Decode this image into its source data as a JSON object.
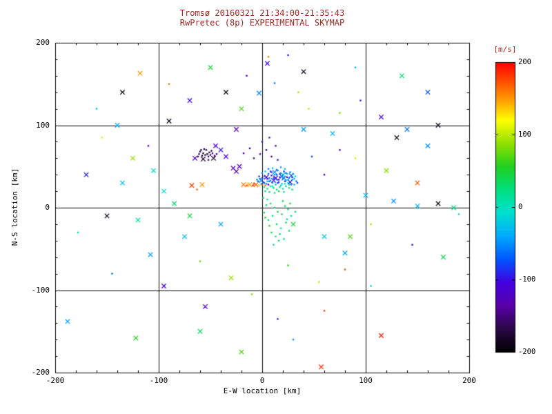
{
  "chart_data": {
    "type": "scatter",
    "title_line1": "Tromsø 20160321 21:34:00-21:35:43",
    "title_line2": "RwPretec (8p) EXPERIMENTAL SKYMAP",
    "xlabel": "E-W location [km]",
    "ylabel": "N-S location [km]",
    "xlim": [
      -200,
      200
    ],
    "ylim": [
      -200,
      200
    ],
    "grid": true,
    "grid_values": [
      -100,
      0,
      100
    ],
    "major_ticks": [
      -200,
      -100,
      0,
      100,
      200
    ],
    "minor_tick_step": 20,
    "x_tick_labels": [
      "-200",
      "-100",
      "0",
      "100",
      "200"
    ],
    "y_tick_labels": [
      "200",
      "100",
      "0",
      "-100",
      "-200"
    ],
    "legend_position": "right-colorbar",
    "colorbar": {
      "label": "[m/s]",
      "min": -200,
      "max": 200,
      "tick_values": [
        200,
        100,
        0,
        -100,
        -200
      ],
      "tick_labels": [
        "200",
        "100",
        "0",
        "-100",
        "-200"
      ]
    },
    "colors": {
      "title": "#992a20",
      "colorbar_label": "#cc2222",
      "axis": "#000000",
      "background": "#ffffff"
    },
    "colormap": [
      {
        "t": 0.0,
        "color": "#000000"
      },
      {
        "t": 0.08,
        "color": "#2a0845"
      },
      {
        "t": 0.16,
        "color": "#5a00a8"
      },
      {
        "t": 0.24,
        "color": "#4400e0"
      },
      {
        "t": 0.32,
        "color": "#0055ff"
      },
      {
        "t": 0.4,
        "color": "#00aaff"
      },
      {
        "t": 0.48,
        "color": "#00e0d0"
      },
      {
        "t": 0.56,
        "color": "#00e080"
      },
      {
        "t": 0.64,
        "color": "#20d020"
      },
      {
        "t": 0.72,
        "color": "#90e000"
      },
      {
        "t": 0.8,
        "color": "#ffff00"
      },
      {
        "t": 0.88,
        "color": "#ff9000"
      },
      {
        "t": 1.0,
        "color": "#ff0000"
      }
    ],
    "marker_legend": {
      "0": "dot",
      "1": "cross"
    },
    "points": [
      [
        2,
        38,
        -60,
        0
      ],
      [
        5,
        35,
        -80,
        0
      ],
      [
        8,
        33,
        -40,
        0
      ],
      [
        11,
        36,
        -70,
        0
      ],
      [
        14,
        34,
        -30,
        0
      ],
      [
        17,
        37,
        -90,
        0
      ],
      [
        20,
        35,
        -50,
        0
      ],
      [
        23,
        33,
        -20,
        0
      ],
      [
        26,
        36,
        -60,
        0
      ],
      [
        29,
        34,
        -40,
        0
      ],
      [
        1,
        31,
        -100,
        0
      ],
      [
        4,
        29,
        -55,
        0
      ],
      [
        7,
        32,
        -65,
        0
      ],
      [
        10,
        30,
        -45,
        0
      ],
      [
        13,
        28,
        -35,
        0
      ],
      [
        16,
        31,
        -75,
        0
      ],
      [
        19,
        29,
        -25,
        0
      ],
      [
        22,
        32,
        -85,
        0
      ],
      [
        25,
        30,
        -15,
        0
      ],
      [
        28,
        28,
        -60,
        0
      ],
      [
        0,
        42,
        -50,
        0
      ],
      [
        3,
        44,
        -30,
        0
      ],
      [
        6,
        41,
        -70,
        0
      ],
      [
        9,
        43,
        -90,
        0
      ],
      [
        12,
        40,
        -40,
        0
      ],
      [
        15,
        45,
        -60,
        0
      ],
      [
        18,
        42,
        -20,
        0
      ],
      [
        21,
        44,
        -80,
        0
      ],
      [
        24,
        41,
        -35,
        0
      ],
      [
        27,
        43,
        -55,
        0
      ],
      [
        2,
        25,
        10,
        0
      ],
      [
        5,
        23,
        25,
        0
      ],
      [
        8,
        26,
        5,
        0
      ],
      [
        11,
        24,
        40,
        0
      ],
      [
        14,
        22,
        15,
        0
      ],
      [
        17,
        25,
        30,
        0
      ],
      [
        20,
        23,
        0,
        0
      ],
      [
        23,
        26,
        20,
        0
      ],
      [
        26,
        24,
        35,
        0
      ],
      [
        29,
        22,
        10,
        0
      ],
      [
        -2,
        35,
        -45,
        0
      ],
      [
        -4,
        32,
        -65,
        0
      ],
      [
        -1,
        29,
        -30,
        0
      ],
      [
        -3,
        38,
        -85,
        0
      ],
      [
        -5,
        34,
        -50,
        0
      ],
      [
        31,
        35,
        -40,
        0
      ],
      [
        33,
        32,
        -60,
        0
      ],
      [
        32,
        38,
        -25,
        0
      ],
      [
        34,
        30,
        -70,
        0
      ],
      [
        30,
        41,
        -45,
        0
      ],
      [
        6,
        47,
        -55,
        0
      ],
      [
        10,
        48,
        -35,
        0
      ],
      [
        14,
        46,
        -65,
        0
      ],
      [
        18,
        49,
        -45,
        0
      ],
      [
        22,
        47,
        -25,
        0
      ],
      [
        3,
        20,
        20,
        0
      ],
      [
        7,
        19,
        35,
        0
      ],
      [
        12,
        18,
        10,
        0
      ],
      [
        16,
        20,
        45,
        0
      ],
      [
        21,
        19,
        25,
        0
      ],
      [
        4,
        37,
        -110,
        1
      ],
      [
        9,
        39,
        -95,
        0
      ],
      [
        13,
        36,
        -120,
        1
      ],
      [
        16,
        34,
        -105,
        0
      ],
      [
        19,
        38,
        -90,
        1
      ],
      [
        24,
        37,
        -115,
        0
      ],
      [
        27,
        31,
        -95,
        1
      ],
      [
        6,
        28,
        -125,
        0
      ],
      [
        11,
        33,
        -100,
        1
      ],
      [
        15,
        30,
        -85,
        0
      ],
      [
        18,
        27,
        -20,
        0
      ],
      [
        21,
        36,
        -55,
        1
      ],
      [
        25,
        34,
        -45,
        0
      ],
      [
        28,
        39,
        -70,
        1
      ],
      [
        0,
        36,
        -95,
        0
      ],
      [
        -1,
        33,
        -60,
        1
      ],
      [
        8,
        44,
        -75,
        0
      ],
      [
        12,
        43,
        -50,
        1
      ],
      [
        17,
        41,
        -85,
        0
      ],
      [
        20,
        40,
        -30,
        1
      ],
      [
        5,
        32,
        -40,
        0
      ],
      [
        10,
        26,
        15,
        0
      ],
      [
        14,
        40,
        -65,
        0
      ],
      [
        22,
        29,
        -10,
        0
      ],
      [
        26,
        28,
        25,
        0
      ],
      [
        2,
        30,
        -75,
        0
      ],
      [
        7,
        36,
        -55,
        0
      ],
      [
        23,
        42,
        -60,
        0
      ],
      [
        29,
        37,
        -80,
        0
      ],
      [
        31,
        28,
        -35,
        0
      ],
      [
        -18,
        28,
        160,
        1
      ],
      [
        -15,
        27,
        180,
        0
      ],
      [
        -12,
        28,
        150,
        1
      ],
      [
        -9,
        27,
        190,
        0
      ],
      [
        -6,
        28,
        170,
        1
      ],
      [
        -3,
        27,
        140,
        0
      ],
      [
        0,
        28,
        185,
        0
      ],
      [
        3,
        27,
        155,
        0
      ],
      [
        -14,
        29,
        130,
        0
      ],
      [
        -8,
        29,
        175,
        0
      ],
      [
        -60,
        68,
        -170,
        0
      ],
      [
        -57,
        66,
        -180,
        0
      ],
      [
        -54,
        70,
        -160,
        0
      ],
      [
        -51,
        67,
        -175,
        0
      ],
      [
        -58,
        63,
        -185,
        0
      ],
      [
        -55,
        64,
        -165,
        0
      ],
      [
        -52,
        62,
        -155,
        0
      ],
      [
        -49,
        69,
        -170,
        0
      ],
      [
        -61,
        65,
        -150,
        0
      ],
      [
        -56,
        71,
        -180,
        0
      ],
      [
        -53,
        65,
        -190,
        0
      ],
      [
        -50,
        64,
        -160,
        0
      ],
      [
        -59,
        70,
        -175,
        0
      ],
      [
        -48,
        66,
        -145,
        0
      ],
      [
        -62,
        62,
        -165,
        0
      ],
      [
        -46,
        63,
        -155,
        0
      ],
      [
        -57,
        59,
        -170,
        1
      ],
      [
        -52,
        58,
        -150,
        0
      ],
      [
        -47,
        60,
        -180,
        1
      ],
      [
        -44,
        65,
        -140,
        0
      ],
      [
        -45,
        75,
        -110,
        1
      ],
      [
        -40,
        70,
        -95,
        1
      ],
      [
        -65,
        60,
        -120,
        1
      ],
      [
        -35,
        62,
        -105,
        1
      ],
      [
        -28,
        48,
        -130,
        1
      ],
      [
        -22,
        50,
        -120,
        1
      ],
      [
        -25,
        44,
        -140,
        1
      ],
      [
        5,
        10,
        20,
        0
      ],
      [
        8,
        5,
        35,
        0
      ],
      [
        12,
        0,
        10,
        0
      ],
      [
        15,
        -5,
        45,
        0
      ],
      [
        10,
        -10,
        25,
        0
      ],
      [
        6,
        -15,
        15,
        0
      ],
      [
        14,
        -20,
        30,
        0
      ],
      [
        18,
        -25,
        5,
        0
      ],
      [
        9,
        -30,
        40,
        0
      ],
      [
        13,
        -35,
        20,
        0
      ],
      [
        16,
        -40,
        35,
        0
      ],
      [
        11,
        -45,
        15,
        0
      ],
      [
        20,
        8,
        50,
        0
      ],
      [
        22,
        2,
        25,
        0
      ],
      [
        19,
        -8,
        40,
        0
      ],
      [
        24,
        -14,
        10,
        0
      ],
      [
        7,
        -22,
        55,
        0
      ],
      [
        17,
        -32,
        30,
        0
      ],
      [
        21,
        -38,
        20,
        0
      ],
      [
        4,
        3,
        30,
        0
      ],
      [
        2,
        -6,
        45,
        0
      ],
      [
        25,
        -2,
        15,
        0
      ],
      [
        23,
        -18,
        35,
        0
      ],
      [
        26,
        -28,
        25,
        0
      ],
      [
        28,
        -10,
        5,
        0
      ],
      [
        30,
        -20,
        45,
        1
      ],
      [
        27,
        5,
        60,
        0
      ],
      [
        32,
        -5,
        30,
        0
      ],
      [
        3,
        -12,
        50,
        0
      ],
      [
        1,
        12,
        25,
        0
      ],
      [
        -40,
        -20,
        -40,
        1
      ],
      [
        100,
        15,
        -30,
        1
      ],
      [
        127,
        8,
        -50,
        1
      ],
      [
        150,
        2,
        -35,
        1
      ],
      [
        -108,
        -57,
        -45,
        1
      ],
      [
        60,
        -35,
        -25,
        1
      ],
      [
        80,
        -55,
        -40,
        1
      ],
      [
        -75,
        -35,
        -30,
        1
      ],
      [
        40,
        95,
        -45,
        1
      ],
      [
        68,
        90,
        -35,
        1
      ],
      [
        140,
        95,
        -60,
        1
      ],
      [
        160,
        75,
        -50,
        1
      ],
      [
        -140,
        100,
        -40,
        1
      ],
      [
        115,
        -155,
        190,
        1
      ],
      [
        60,
        -125,
        180,
        0
      ],
      [
        150,
        30,
        170,
        1
      ],
      [
        -90,
        150,
        160,
        0
      ],
      [
        -68,
        27,
        180,
        1
      ],
      [
        -63,
        22,
        165,
        0
      ],
      [
        -58,
        28,
        150,
        1
      ],
      [
        57,
        -193,
        185,
        1
      ],
      [
        80,
        -75,
        175,
        0
      ],
      [
        -118,
        163,
        150,
        1
      ],
      [
        -135,
        140,
        -195,
        1
      ],
      [
        -90,
        105,
        -190,
        1
      ],
      [
        170,
        100,
        -185,
        1
      ],
      [
        130,
        85,
        -190,
        1
      ],
      [
        -35,
        140,
        -195,
        1
      ],
      [
        40,
        165,
        -190,
        1
      ],
      [
        -150,
        -10,
        -185,
        1
      ],
      [
        170,
        5,
        -190,
        1
      ],
      [
        -155,
        85,
        110,
        0
      ],
      [
        -125,
        60,
        90,
        1
      ],
      [
        45,
        120,
        100,
        0
      ],
      [
        75,
        115,
        80,
        0
      ],
      [
        -20,
        120,
        70,
        1
      ],
      [
        35,
        140,
        95,
        0
      ],
      [
        90,
        60,
        105,
        0
      ],
      [
        120,
        45,
        85,
        1
      ],
      [
        -60,
        -65,
        75,
        0
      ],
      [
        -30,
        -85,
        90,
        1
      ],
      [
        25,
        -70,
        60,
        0
      ],
      [
        55,
        -90,
        100,
        0
      ],
      [
        -10,
        -105,
        80,
        0
      ],
      [
        85,
        -35,
        70,
        1
      ],
      [
        105,
        -20,
        95,
        0
      ],
      [
        -15,
        160,
        -120,
        0
      ],
      [
        5,
        175,
        -100,
        1
      ],
      [
        25,
        185,
        -90,
        0
      ],
      [
        -70,
        130,
        -110,
        1
      ],
      [
        95,
        130,
        -95,
        0
      ],
      [
        115,
        110,
        -105,
        1
      ],
      [
        -110,
        75,
        -115,
        0
      ],
      [
        -170,
        40,
        -90,
        1
      ],
      [
        145,
        -45,
        -100,
        0
      ],
      [
        -55,
        -120,
        -110,
        1
      ],
      [
        15,
        -135,
        -95,
        0
      ],
      [
        -95,
        -95,
        -105,
        1
      ],
      [
        60,
        40,
        -115,
        0
      ],
      [
        75,
        70,
        -125,
        0
      ],
      [
        -25,
        95,
        -135,
        1
      ],
      [
        6,
        183,
        160,
        0
      ],
      [
        -3,
        139,
        -55,
        1
      ],
      [
        12,
        151,
        -60,
        0
      ],
      [
        -188,
        -138,
        -45,
        1
      ],
      [
        -122,
        -158,
        60,
        1
      ],
      [
        185,
        0,
        20,
        1
      ],
      [
        190,
        -8,
        -15,
        0
      ],
      [
        175,
        -60,
        40,
        1
      ],
      [
        -178,
        -30,
        15,
        0
      ],
      [
        160,
        140,
        -70,
        1
      ],
      [
        -160,
        120,
        -30,
        0
      ],
      [
        -50,
        170,
        50,
        1
      ],
      [
        90,
        170,
        -40,
        0
      ],
      [
        135,
        160,
        25,
        1
      ],
      [
        -145,
        -80,
        -60,
        0
      ],
      [
        -60,
        -150,
        35,
        1
      ],
      [
        30,
        -160,
        -50,
        0
      ],
      [
        -20,
        -175,
        70,
        1
      ],
      [
        105,
        -95,
        -20,
        0
      ],
      [
        48,
        62,
        -80,
        0
      ],
      [
        -8,
        60,
        -150,
        0
      ],
      [
        -2,
        65,
        -135,
        0
      ],
      [
        4,
        70,
        -160,
        0
      ],
      [
        9,
        62,
        -145,
        0
      ],
      [
        13,
        75,
        -130,
        0
      ],
      [
        -12,
        72,
        -155,
        0
      ],
      [
        0,
        80,
        -120,
        0
      ],
      [
        7,
        85,
        -140,
        0
      ],
      [
        -18,
        66,
        -125,
        0
      ],
      [
        15,
        58,
        -110,
        0
      ],
      [
        -95,
        20,
        -10,
        1
      ],
      [
        -85,
        5,
        30,
        1
      ],
      [
        -120,
        -15,
        10,
        1
      ],
      [
        -135,
        30,
        -25,
        1
      ],
      [
        -70,
        -10,
        45,
        1
      ],
      [
        -105,
        45,
        -5,
        1
      ]
    ]
  }
}
